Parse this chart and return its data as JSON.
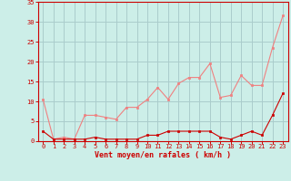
{
  "x": [
    0,
    1,
    2,
    3,
    4,
    5,
    6,
    7,
    8,
    9,
    10,
    11,
    12,
    13,
    14,
    15,
    16,
    17,
    18,
    19,
    20,
    21,
    22,
    23
  ],
  "rafales": [
    10.5,
    0.5,
    1.0,
    0.5,
    6.5,
    6.5,
    6.0,
    5.5,
    8.5,
    8.5,
    10.5,
    13.5,
    10.5,
    14.5,
    16.0,
    16.0,
    19.5,
    11.0,
    11.5,
    16.5,
    14.0,
    14.0,
    23.5,
    31.5
  ],
  "moyen": [
    2.5,
    0.5,
    0.5,
    0.5,
    0.5,
    1.0,
    0.5,
    0.5,
    0.5,
    0.5,
    1.5,
    1.5,
    2.5,
    2.5,
    2.5,
    2.5,
    2.5,
    1.0,
    0.5,
    1.5,
    2.5,
    1.5,
    6.5,
    12.0
  ],
  "line_color_rafales": "#f08080",
  "line_color_moyen": "#cc0000",
  "marker_color_rafales": "#f08080",
  "marker_color_moyen": "#cc0000",
  "bg_color": "#cceee8",
  "grid_color": "#aacccc",
  "axis_color": "#cc0000",
  "tick_color": "#cc0000",
  "xlabel": "Vent moyen/en rafales ( km/h )",
  "xlabel_color": "#cc0000",
  "ylim": [
    0,
    35
  ],
  "yticks": [
    0,
    5,
    10,
    15,
    20,
    25,
    30,
    35
  ],
  "xlim": [
    -0.5,
    23.5
  ],
  "xticks": [
    0,
    1,
    2,
    3,
    4,
    5,
    6,
    7,
    8,
    9,
    10,
    11,
    12,
    13,
    14,
    15,
    16,
    17,
    18,
    19,
    20,
    21,
    22,
    23
  ]
}
